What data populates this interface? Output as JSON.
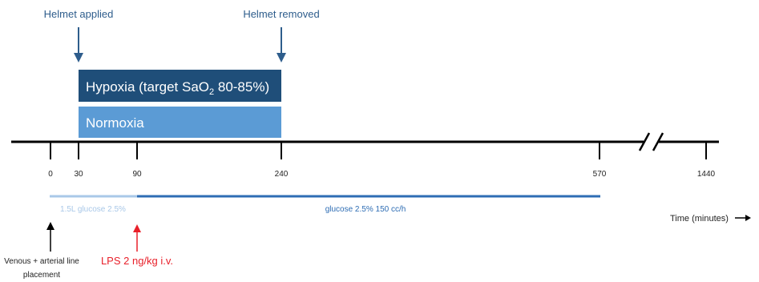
{
  "events_top": {
    "helmet_applied": "Helmet applied",
    "helmet_removed": "Helmet removed"
  },
  "bars": {
    "hypoxia_prefix": "Hypoxia (target SaO",
    "hypoxia_sub_2": "2",
    "hypoxia_suffix": " 80-85%)",
    "normoxia": "Normoxia"
  },
  "ticks": [
    {
      "value": 0,
      "label": "0"
    },
    {
      "value": 30,
      "label": "30"
    },
    {
      "value": 90,
      "label": "90"
    },
    {
      "value": 240,
      "label": "240"
    },
    {
      "value": 570,
      "label": "570"
    },
    {
      "value": 1440,
      "label": "1440"
    }
  ],
  "infusions": {
    "initial": "1.5L glucose 2.5%",
    "maintenance": "glucose 2.5% 150 cc/h"
  },
  "axis": {
    "time_label": "Time (minutes)"
  },
  "events_bottom": {
    "line_placement_1": "Venous + arterial line",
    "line_placement_2": "placement",
    "lps": "LPS 2 ng/kg i.v."
  },
  "colors": {
    "hypoxia": "#1f4e79",
    "normoxia": "#5b9bd5",
    "arrow_top": "#2e5d8c",
    "initial_infusion": "#a9c8e8",
    "maintenance_infusion": "#2e6db4",
    "lps": "#e8202a",
    "axis": "#000000"
  }
}
